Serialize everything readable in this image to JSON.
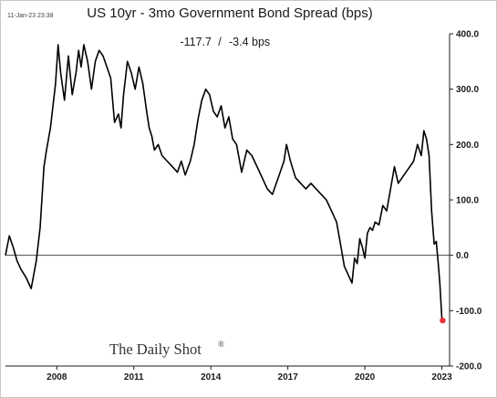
{
  "header": {
    "timestamp": "11-Jan-23 23:38"
  },
  "readout": {
    "value": "-117.7",
    "separator": "/",
    "change": "-3.4 bps"
  },
  "branding": {
    "logo_text": "The Daily Shot",
    "logo_mark": "®"
  },
  "colors": {
    "line": "#000000",
    "zero_line": "#444444",
    "last_point": "#e8313a"
  },
  "chart_data": {
    "type": "line",
    "title": "US 10yr - 3mo Government Bond Spread (bps)",
    "xlabel": "",
    "ylabel": "",
    "xlim": [
      2006.0,
      2023.3
    ],
    "ylim": [
      -200,
      400
    ],
    "x_ticks": [
      2008,
      2011,
      2014,
      2017,
      2020,
      2023
    ],
    "y_ticks": [
      400,
      300,
      200,
      100,
      0,
      -100,
      -200
    ],
    "y_tick_labels": [
      "400.0",
      "300.0",
      "200.0",
      "100.0",
      "0.0",
      "-100.0",
      "-200.0"
    ],
    "reference_line_y": 0,
    "grid": false,
    "legend": "none",
    "y_axis_side": "right",
    "series": [
      {
        "x": [
          2006.0,
          2006.15,
          2006.3,
          2006.45,
          2006.6,
          2006.8,
          2007.0,
          2007.2,
          2007.35,
          2007.5,
          2007.6,
          2007.75,
          2007.85,
          2007.95,
          2008.05,
          2008.15,
          2008.3,
          2008.45,
          2008.6,
          2008.75,
          2008.85,
          2008.95,
          2009.05,
          2009.2,
          2009.35,
          2009.5,
          2009.65,
          2009.8,
          2009.95,
          2010.1,
          2010.25,
          2010.4,
          2010.5,
          2010.6,
          2010.75,
          2010.9,
          2011.05,
          2011.2,
          2011.35,
          2011.5,
          2011.6,
          2011.7,
          2011.8,
          2011.95,
          2012.1,
          2012.3,
          2012.5,
          2012.7,
          2012.85,
          2013.0,
          2013.2,
          2013.35,
          2013.5,
          2013.65,
          2013.8,
          2013.95,
          2014.1,
          2014.25,
          2014.4,
          2014.55,
          2014.7,
          2014.85,
          2015.0,
          2015.2,
          2015.4,
          2015.6,
          2015.8,
          2016.0,
          2016.2,
          2016.4,
          2016.55,
          2016.7,
          2016.85,
          2016.95,
          2017.1,
          2017.3,
          2017.5,
          2017.7,
          2017.9,
          2018.1,
          2018.3,
          2018.5,
          2018.7,
          2018.9,
          2019.05,
          2019.2,
          2019.35,
          2019.5,
          2019.6,
          2019.7,
          2019.8,
          2019.9,
          2020.0,
          2020.1,
          2020.2,
          2020.3,
          2020.4,
          2020.55,
          2020.7,
          2020.85,
          2021.0,
          2021.15,
          2021.3,
          2021.45,
          2021.6,
          2021.75,
          2021.9,
          2022.05,
          2022.2,
          2022.3,
          2022.4,
          2022.5,
          2022.6,
          2022.7,
          2022.78,
          2022.85,
          2022.92,
          2023.0,
          2023.03
        ],
        "y": [
          0,
          35,
          15,
          -10,
          -25,
          -40,
          -60,
          -10,
          50,
          160,
          190,
          230,
          270,
          310,
          380,
          330,
          280,
          360,
          290,
          330,
          370,
          340,
          380,
          350,
          300,
          350,
          370,
          360,
          340,
          320,
          240,
          255,
          230,
          290,
          350,
          330,
          300,
          340,
          310,
          260,
          230,
          215,
          190,
          200,
          180,
          170,
          160,
          150,
          170,
          145,
          170,
          200,
          245,
          280,
          300,
          290,
          260,
          250,
          270,
          230,
          250,
          210,
          200,
          150,
          190,
          180,
          160,
          140,
          120,
          110,
          130,
          150,
          170,
          200,
          170,
          140,
          130,
          120,
          130,
          120,
          110,
          100,
          80,
          60,
          20,
          -20,
          -35,
          -50,
          -5,
          -15,
          30,
          15,
          -5,
          40,
          50,
          45,
          60,
          55,
          90,
          80,
          120,
          160,
          130,
          140,
          150,
          160,
          170,
          200,
          180,
          225,
          210,
          180,
          80,
          20,
          25,
          -10,
          -50,
          -115,
          -117.7
        ]
      }
    ]
  }
}
